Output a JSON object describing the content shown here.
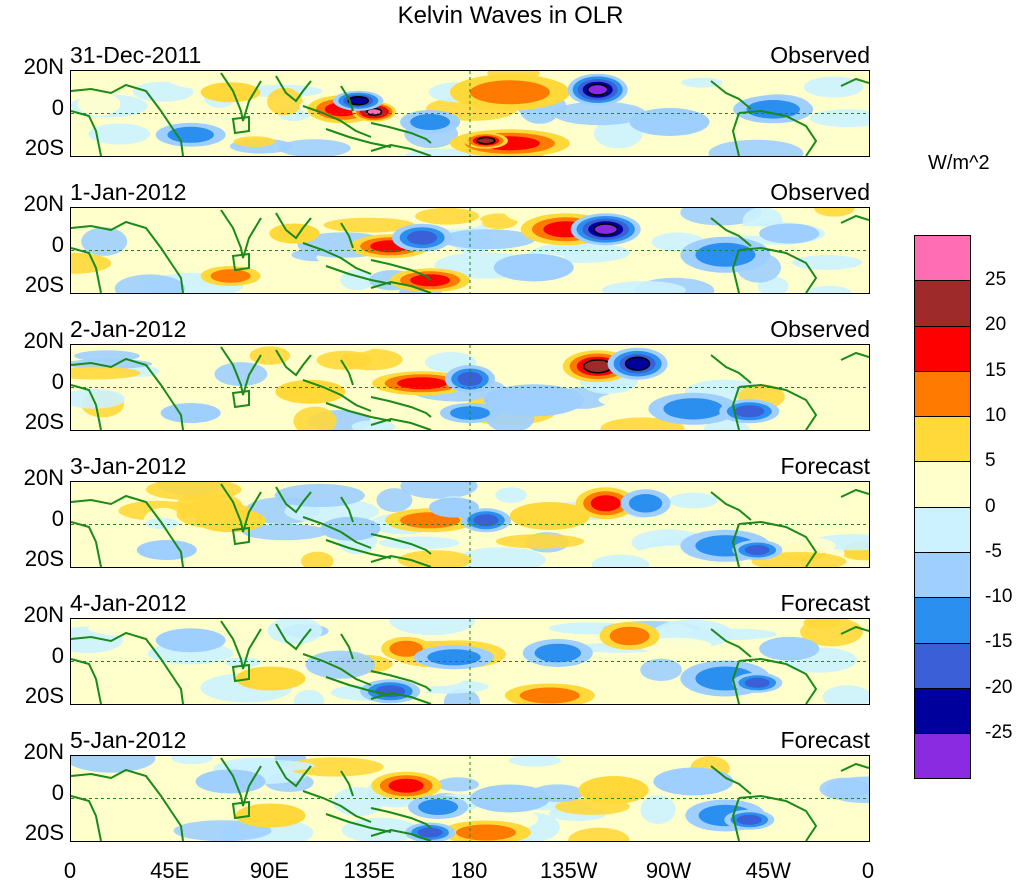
{
  "title": "Kelvin Waves in OLR",
  "panels": [
    {
      "date": "31-Dec-2011",
      "status": "Observed"
    },
    {
      "date": "1-Jan-2012",
      "status": "Observed"
    },
    {
      "date": "2-Jan-2012",
      "status": "Observed"
    },
    {
      "date": "3-Jan-2012",
      "status": "Forecast"
    },
    {
      "date": "4-Jan-2012",
      "status": "Forecast"
    },
    {
      "date": "5-Jan-2012",
      "status": "Forecast"
    }
  ],
  "lat_labels": [
    "20N",
    "0",
    "20S"
  ],
  "lon_labels": [
    "0",
    "45E",
    "90E",
    "135E",
    "180",
    "135W",
    "90W",
    "45W",
    "0"
  ],
  "legend": {
    "title": "W/m^2",
    "levels": [
      "25",
      "20",
      "15",
      "10",
      "5",
      "0",
      "-5",
      "-10",
      "-15",
      "-20",
      "-25"
    ],
    "colors": [
      "#ff6eb4",
      "#9e2a2a",
      "#ff0000",
      "#ff7a00",
      "#ffd83a",
      "#ffffcc",
      "#ccf2ff",
      "#9ecfff",
      "#2b8ff0",
      "#3a5fd6",
      "#00009c",
      "#8a2be2"
    ]
  },
  "map_colors": {
    "land_outline": "#1a8a1a",
    "grid_line": "#1a8a1a"
  },
  "chart_data": {
    "type": "heatmap",
    "title": "Kelvin Waves in OLR",
    "colorbar_label": "W/m^2",
    "colorbar_levels": [
      25,
      20,
      15,
      10,
      5,
      0,
      -5,
      -10,
      -15,
      -20,
      -25
    ],
    "lat_range": [
      -20,
      20
    ],
    "lon_range": [
      0,
      360
    ]
  }
}
